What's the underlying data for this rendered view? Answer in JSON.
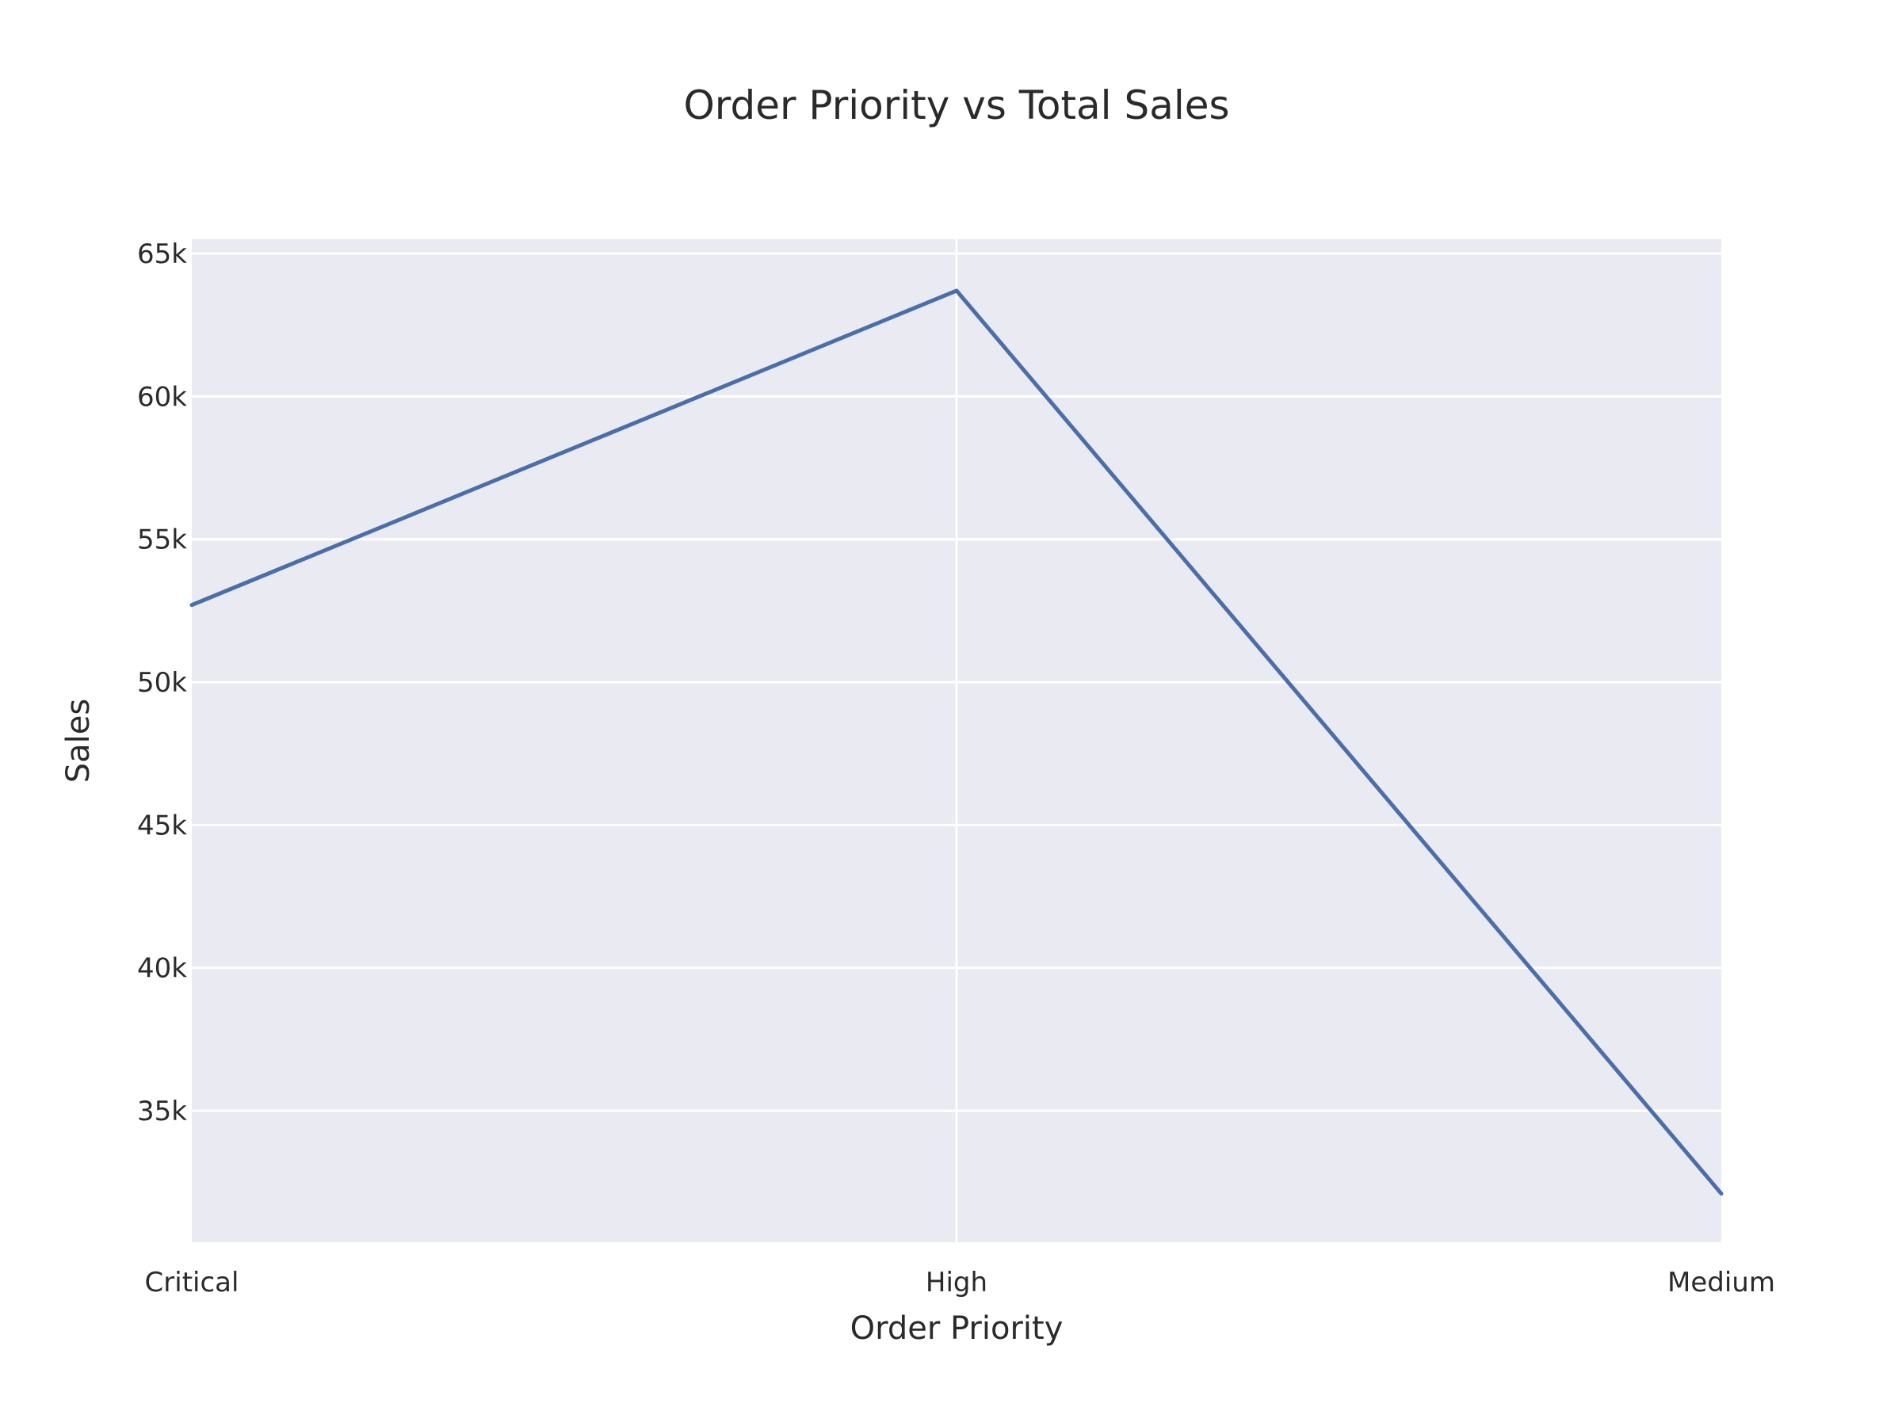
{
  "chart_data": {
    "type": "line",
    "title": "Order Priority vs Total Sales",
    "xlabel": "Order Priority",
    "ylabel": "Sales",
    "categories": [
      "Critical",
      "High",
      "Medium"
    ],
    "series": [
      {
        "values": [
          52700,
          63700,
          32100
        ]
      }
    ],
    "ylim": [
      30400,
      65500
    ],
    "yticks": [
      35000,
      40000,
      45000,
      50000,
      55000,
      60000,
      65000
    ],
    "ytick_labels": [
      "35k",
      "40k",
      "45k",
      "50k",
      "55k",
      "60k",
      "65k"
    ],
    "grid": true,
    "legend": "none",
    "colors": {
      "line": "#4c6ea8",
      "plot_background": "#e9eaf2",
      "grid": "#ffffff",
      "text": "#2a2a2a"
    }
  }
}
